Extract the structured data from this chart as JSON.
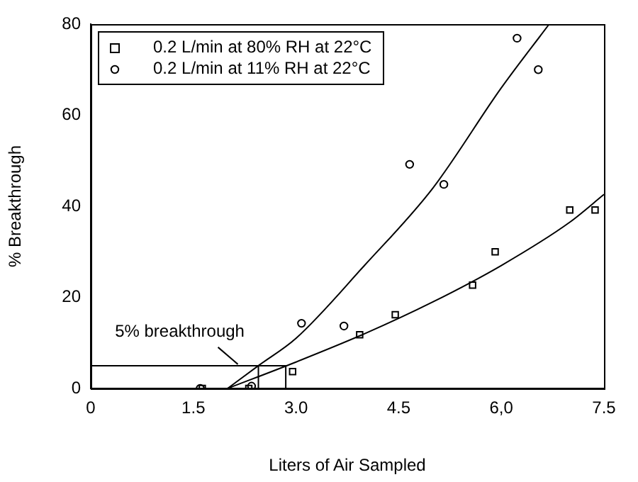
{
  "chart_data": {
    "type": "scatter",
    "xlabel": "Liters of Air Sampled",
    "ylabel": "% Breakthrough",
    "legend": "top left",
    "grid": false,
    "xlim": [
      0,
      7.5
    ],
    "ylim": [
      0,
      80
    ],
    "xticks": [
      0,
      1.5,
      {
        "value": 3,
        "label": "3.0"
      },
      4.5,
      {
        "value": 6,
        "label": "6,0"
      },
      7.5
    ],
    "yticks": [
      0,
      20,
      40,
      60,
      80
    ],
    "series": [
      {
        "name": "0.2 L/min at 80% RH at 22°C",
        "marker": "square",
        "color": "#000000",
        "x": [
          1.63,
          2.31,
          2.95,
          3.93,
          4.45,
          5.58,
          5.91,
          7.0,
          7.37
        ],
        "values": [
          0,
          0,
          3.7,
          11.8,
          16.2,
          22.7,
          30,
          39.2,
          39.2
        ]
      },
      {
        "name": "0.2 L/min at 11% RH at 22°C",
        "marker": "circle",
        "color": "#000000",
        "x": [
          1.6,
          2.35,
          3.08,
          3.7,
          4.66,
          5.16,
          6.23,
          6.54
        ],
        "values": [
          0,
          0.5,
          14.3,
          13.7,
          49.2,
          44.8,
          76.9,
          70
        ]
      },
      {
        "type": "line",
        "marker": "none",
        "color": "#000000",
        "x": [
          2.0,
          3.0,
          4.0,
          5.0,
          6.0,
          7.0,
          7.5
        ],
        "values": [
          0,
          5.8,
          12,
          19,
          27,
          36.5,
          42.6
        ]
      },
      {
        "type": "line",
        "marker": "none",
        "color": "#000000",
        "x": [
          2.0,
          2.45,
          3.0,
          4.0,
          5.0,
          6.0,
          6.7
        ],
        "values": [
          0,
          5,
          11,
          27,
          44,
          66,
          80
        ]
      },
      {
        "type": "line",
        "marker": "none",
        "color": "#000000",
        "x": [
          0,
          2.85,
          2.85
        ],
        "values": [
          5,
          5,
          0
        ]
      },
      {
        "type": "line",
        "marker": "none",
        "color": "#000000",
        "x": [
          2.45,
          2.45
        ],
        "values": [
          5,
          0
        ]
      }
    ],
    "annotations": [
      {
        "text": "5% breakthrough",
        "x": 2.15,
        "y": 5
      }
    ]
  }
}
